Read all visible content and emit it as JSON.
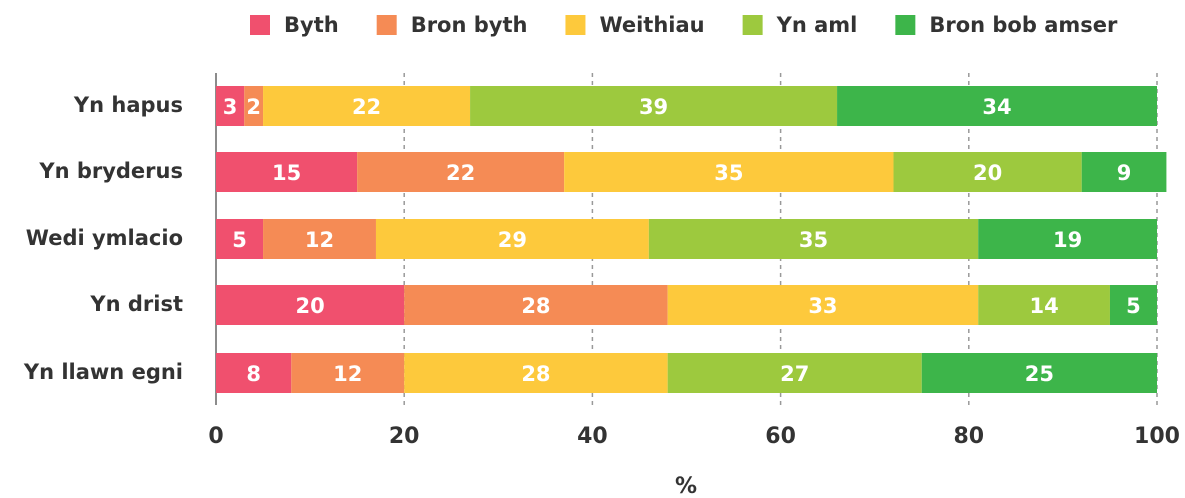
{
  "chart_data": {
    "type": "bar",
    "orientation": "horizontal",
    "stacked": true,
    "categories": [
      "Yn hapus",
      "Yn bryderus",
      "Wedi ymlacio",
      "Yn drist",
      "Yn llawn egni"
    ],
    "series": [
      {
        "name": "Byth",
        "color": "#f0506e",
        "values": [
          3,
          15,
          5,
          20,
          8
        ]
      },
      {
        "name": "Bron byth",
        "color": "#f58b55",
        "values": [
          2,
          22,
          12,
          28,
          12
        ]
      },
      {
        "name": "Weithiau",
        "color": "#fdc93c",
        "values": [
          22,
          35,
          29,
          33,
          28
        ]
      },
      {
        "name": "Yn aml",
        "color": "#9dc93e",
        "values": [
          39,
          20,
          35,
          14,
          27
        ]
      },
      {
        "name": "Bron bob amser",
        "color": "#3db54a",
        "values": [
          34,
          9,
          19,
          5,
          25
        ]
      }
    ],
    "xlim": [
      0,
      100
    ],
    "xticks": [
      0,
      20,
      40,
      60,
      80,
      100
    ],
    "xlabel": "%",
    "grid": true,
    "legend": "top"
  }
}
